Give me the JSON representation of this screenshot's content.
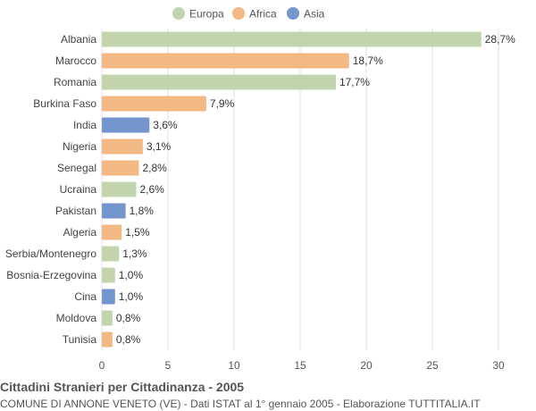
{
  "chart_data": {
    "type": "bar",
    "orientation": "horizontal",
    "title": "Cittadini Stranieri per Cittadinanza - 2005",
    "subtitle": "COMUNE DI ANNONE VENETO (VE) - Dati ISTAT al 1° gennaio 2005 - Elaborazione TUTTITALIA.IT",
    "legend": {
      "placement": "top-center",
      "items": [
        {
          "name": "Europa",
          "color": "#c2d4ae"
        },
        {
          "name": "Africa",
          "color": "#f2b985"
        },
        {
          "name": "Asia",
          "color": "#7596cc"
        }
      ]
    },
    "categories": [
      "Albania",
      "Marocco",
      "Romania",
      "Burkina Faso",
      "India",
      "Nigeria",
      "Senegal",
      "Ucraina",
      "Pakistan",
      "Algeria",
      "Serbia/Montenegro",
      "Bosnia-Erzegovina",
      "Cina",
      "Moldova",
      "Tunisia"
    ],
    "values": [
      28.7,
      18.7,
      17.7,
      7.9,
      3.6,
      3.1,
      2.8,
      2.6,
      1.8,
      1.5,
      1.3,
      1.0,
      1.0,
      0.8,
      0.8
    ],
    "value_labels": [
      "28,7%",
      "18,7%",
      "17,7%",
      "7,9%",
      "3,6%",
      "3,1%",
      "2,8%",
      "2,6%",
      "1,8%",
      "1,5%",
      "1,3%",
      "1,0%",
      "1,0%",
      "0,8%",
      "0,8%"
    ],
    "groups": [
      "Europa",
      "Africa",
      "Europa",
      "Africa",
      "Asia",
      "Africa",
      "Africa",
      "Europa",
      "Asia",
      "Africa",
      "Europa",
      "Europa",
      "Asia",
      "Europa",
      "Africa"
    ],
    "xlim": [
      0,
      30
    ],
    "xticks": [
      0,
      5,
      10,
      15,
      20,
      25,
      30
    ],
    "grid": true
  }
}
